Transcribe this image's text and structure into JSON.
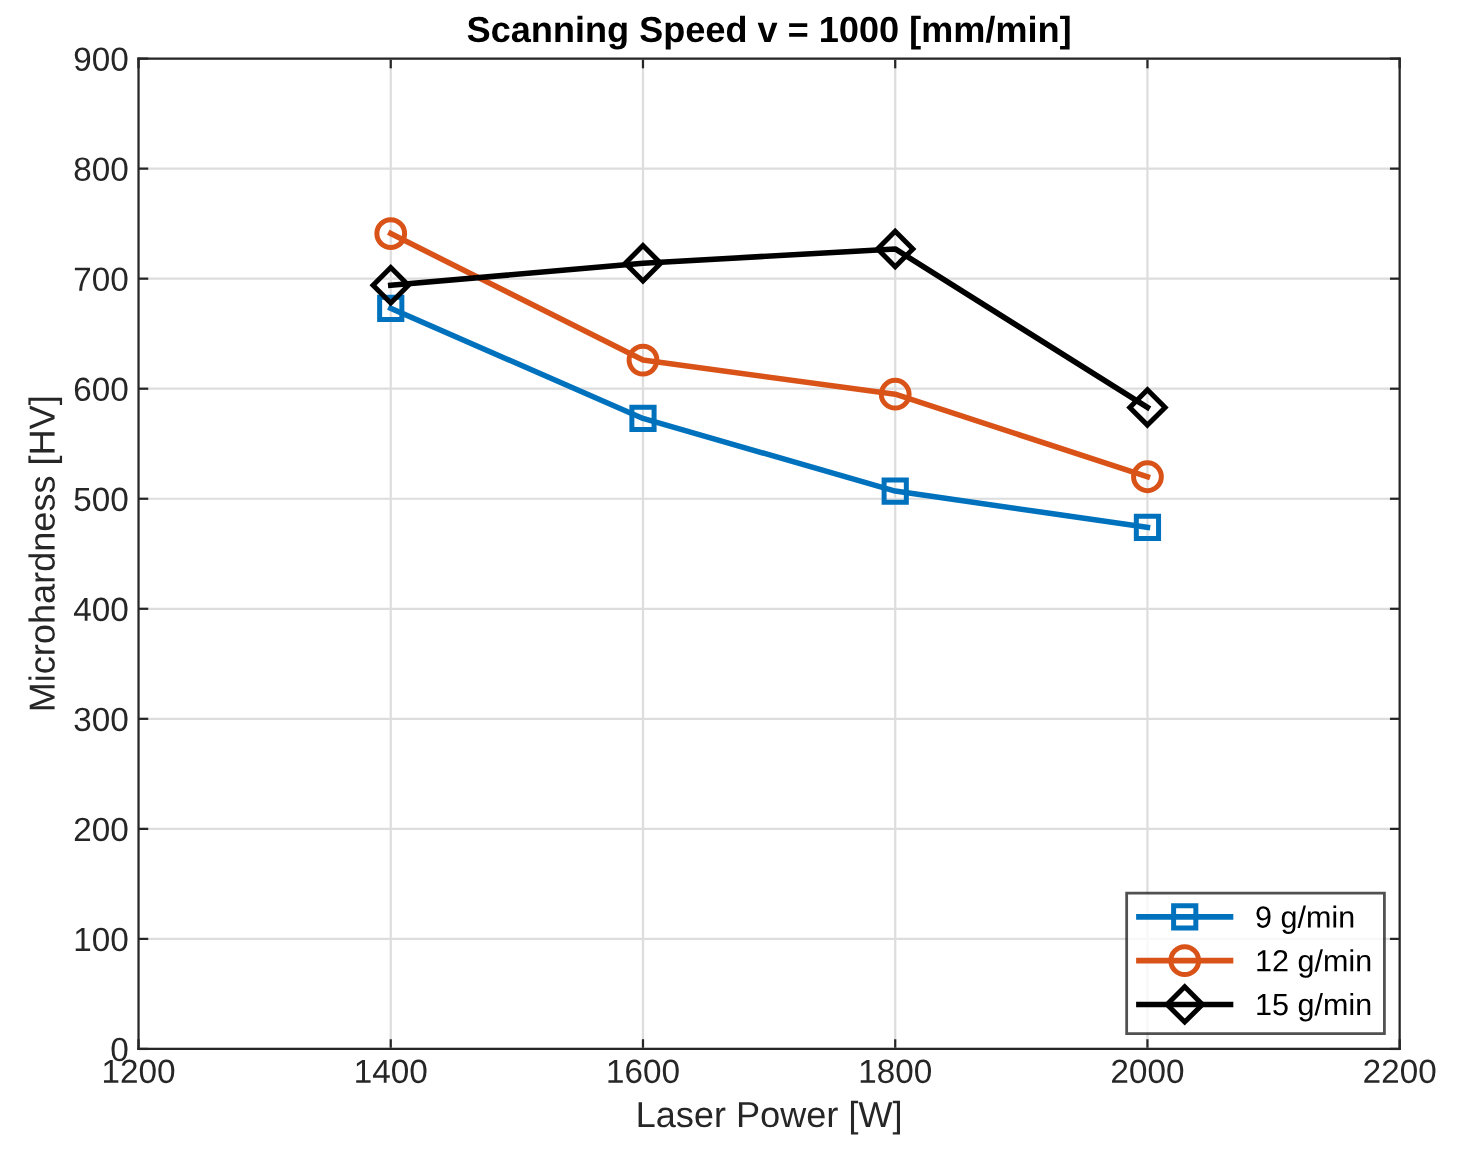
{
  "chart_data": {
    "type": "line",
    "title": "Scanning Speed v = 1000 [mm/min]",
    "xlabel": "Laser Power [W]",
    "ylabel": "Microhardness [HV]",
    "x": [
      1400,
      1600,
      1800,
      2000
    ],
    "series": [
      {
        "name": "9 g/min",
        "color": "#0072bd",
        "marker": "square",
        "values": [
          673,
          573,
          507,
          474
        ]
      },
      {
        "name": "12 g/min",
        "color": "#d95319",
        "marker": "circle",
        "values": [
          741,
          626,
          595,
          520
        ]
      },
      {
        "name": "15 g/min",
        "color": "#000000",
        "marker": "diamond",
        "values": [
          694,
          714,
          727,
          583
        ]
      }
    ],
    "xlim": [
      1200,
      2200
    ],
    "xticks": [
      1200,
      1400,
      1600,
      1800,
      2000,
      2200
    ],
    "ylim": [
      0,
      900
    ],
    "yticks": [
      0,
      100,
      200,
      300,
      400,
      500,
      600,
      700,
      800,
      900
    ],
    "grid": true,
    "legend": "bottom right",
    "line_style": "solid"
  }
}
